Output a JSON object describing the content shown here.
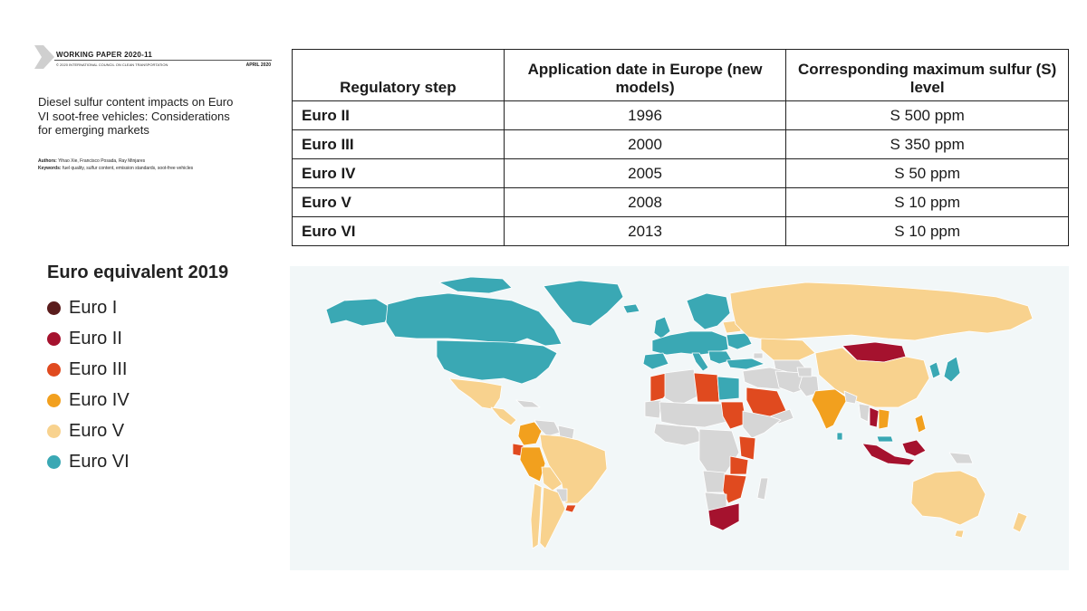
{
  "paper": {
    "label": "WORKING PAPER 2020-11",
    "organization": "© 2020 INTERNATIONAL COUNCIL ON CLEAN TRANSPORTATION",
    "date": "APRIL 2020",
    "title": "Diesel sulfur content impacts on Euro VI soot-free vehicles: Considerations for emerging markets",
    "authors_label": "Authors:",
    "authors": "Yihao Xie, Francisco Posada, Ray Minjares",
    "keywords_label": "Keywords:",
    "keywords": "fuel quality, sulfur content, emission standards, soot-free vehicles"
  },
  "table": {
    "headers": [
      "Regulatory step",
      "Application date in Europe (new models)",
      "Corresponding maximum sulfur (S) level"
    ],
    "rows": [
      {
        "step": "Euro II",
        "date": "1996",
        "sulfur": "S 500 ppm"
      },
      {
        "step": "Euro III",
        "date": "2000",
        "sulfur": "S 350 ppm"
      },
      {
        "step": "Euro IV",
        "date": "2005",
        "sulfur": "S 50 ppm"
      },
      {
        "step": "Euro V",
        "date": "2008",
        "sulfur": "S 10 ppm"
      },
      {
        "step": "Euro VI",
        "date": "2013",
        "sulfur": "S 10 ppm"
      }
    ]
  },
  "legend": {
    "title": "Euro equivalent 2019",
    "items": [
      {
        "label": "Euro I",
        "color": "#5a1c1c"
      },
      {
        "label": "Euro II",
        "color": "#a5122e"
      },
      {
        "label": "Euro III",
        "color": "#e04a1f"
      },
      {
        "label": "Euro IV",
        "color": "#f2a01e"
      },
      {
        "label": "Euro V",
        "color": "#f8d28e"
      },
      {
        "label": "Euro VI",
        "color": "#3aa8b4"
      }
    ],
    "no_data_color": "#d6d6d6",
    "ocean_color": "#f2f7f8"
  }
}
